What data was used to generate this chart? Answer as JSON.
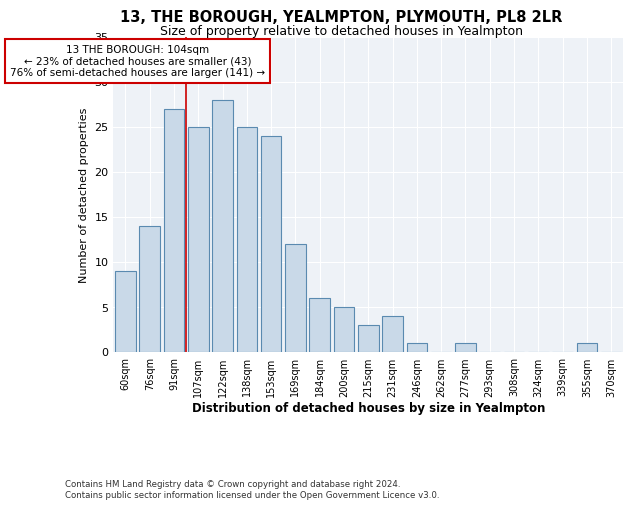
{
  "title": "13, THE BOROUGH, YEALMPTON, PLYMOUTH, PL8 2LR",
  "subtitle": "Size of property relative to detached houses in Yealmpton",
  "xlabel": "Distribution of detached houses by size in Yealmpton",
  "ylabel": "Number of detached properties",
  "bar_labels": [
    "60sqm",
    "76sqm",
    "91sqm",
    "107sqm",
    "122sqm",
    "138sqm",
    "153sqm",
    "169sqm",
    "184sqm",
    "200sqm",
    "215sqm",
    "231sqm",
    "246sqm",
    "262sqm",
    "277sqm",
    "293sqm",
    "308sqm",
    "324sqm",
    "339sqm",
    "355sqm",
    "370sqm"
  ],
  "bar_values": [
    9,
    14,
    27,
    25,
    28,
    25,
    24,
    12,
    6,
    5,
    3,
    4,
    1,
    0,
    1,
    0,
    0,
    0,
    0,
    1,
    0
  ],
  "bar_color": "#c9d9e8",
  "bar_edge_color": "#5a8ab0",
  "ann_line1": "13 THE BOROUGH: 104sqm",
  "ann_line2": "← 23% of detached houses are smaller (43)",
  "ann_line3": "76% of semi-detached houses are larger (141) →",
  "annotation_box_color": "#cc0000",
  "vline_color": "#cc0000",
  "vline_x": 2.5,
  "ylim": [
    0,
    35
  ],
  "yticks": [
    0,
    5,
    10,
    15,
    20,
    25,
    30,
    35
  ],
  "background_color": "#eef2f7",
  "grid_color": "#ffffff",
  "footer1": "Contains HM Land Registry data © Crown copyright and database right 2024.",
  "footer2": "Contains public sector information licensed under the Open Government Licence v3.0."
}
